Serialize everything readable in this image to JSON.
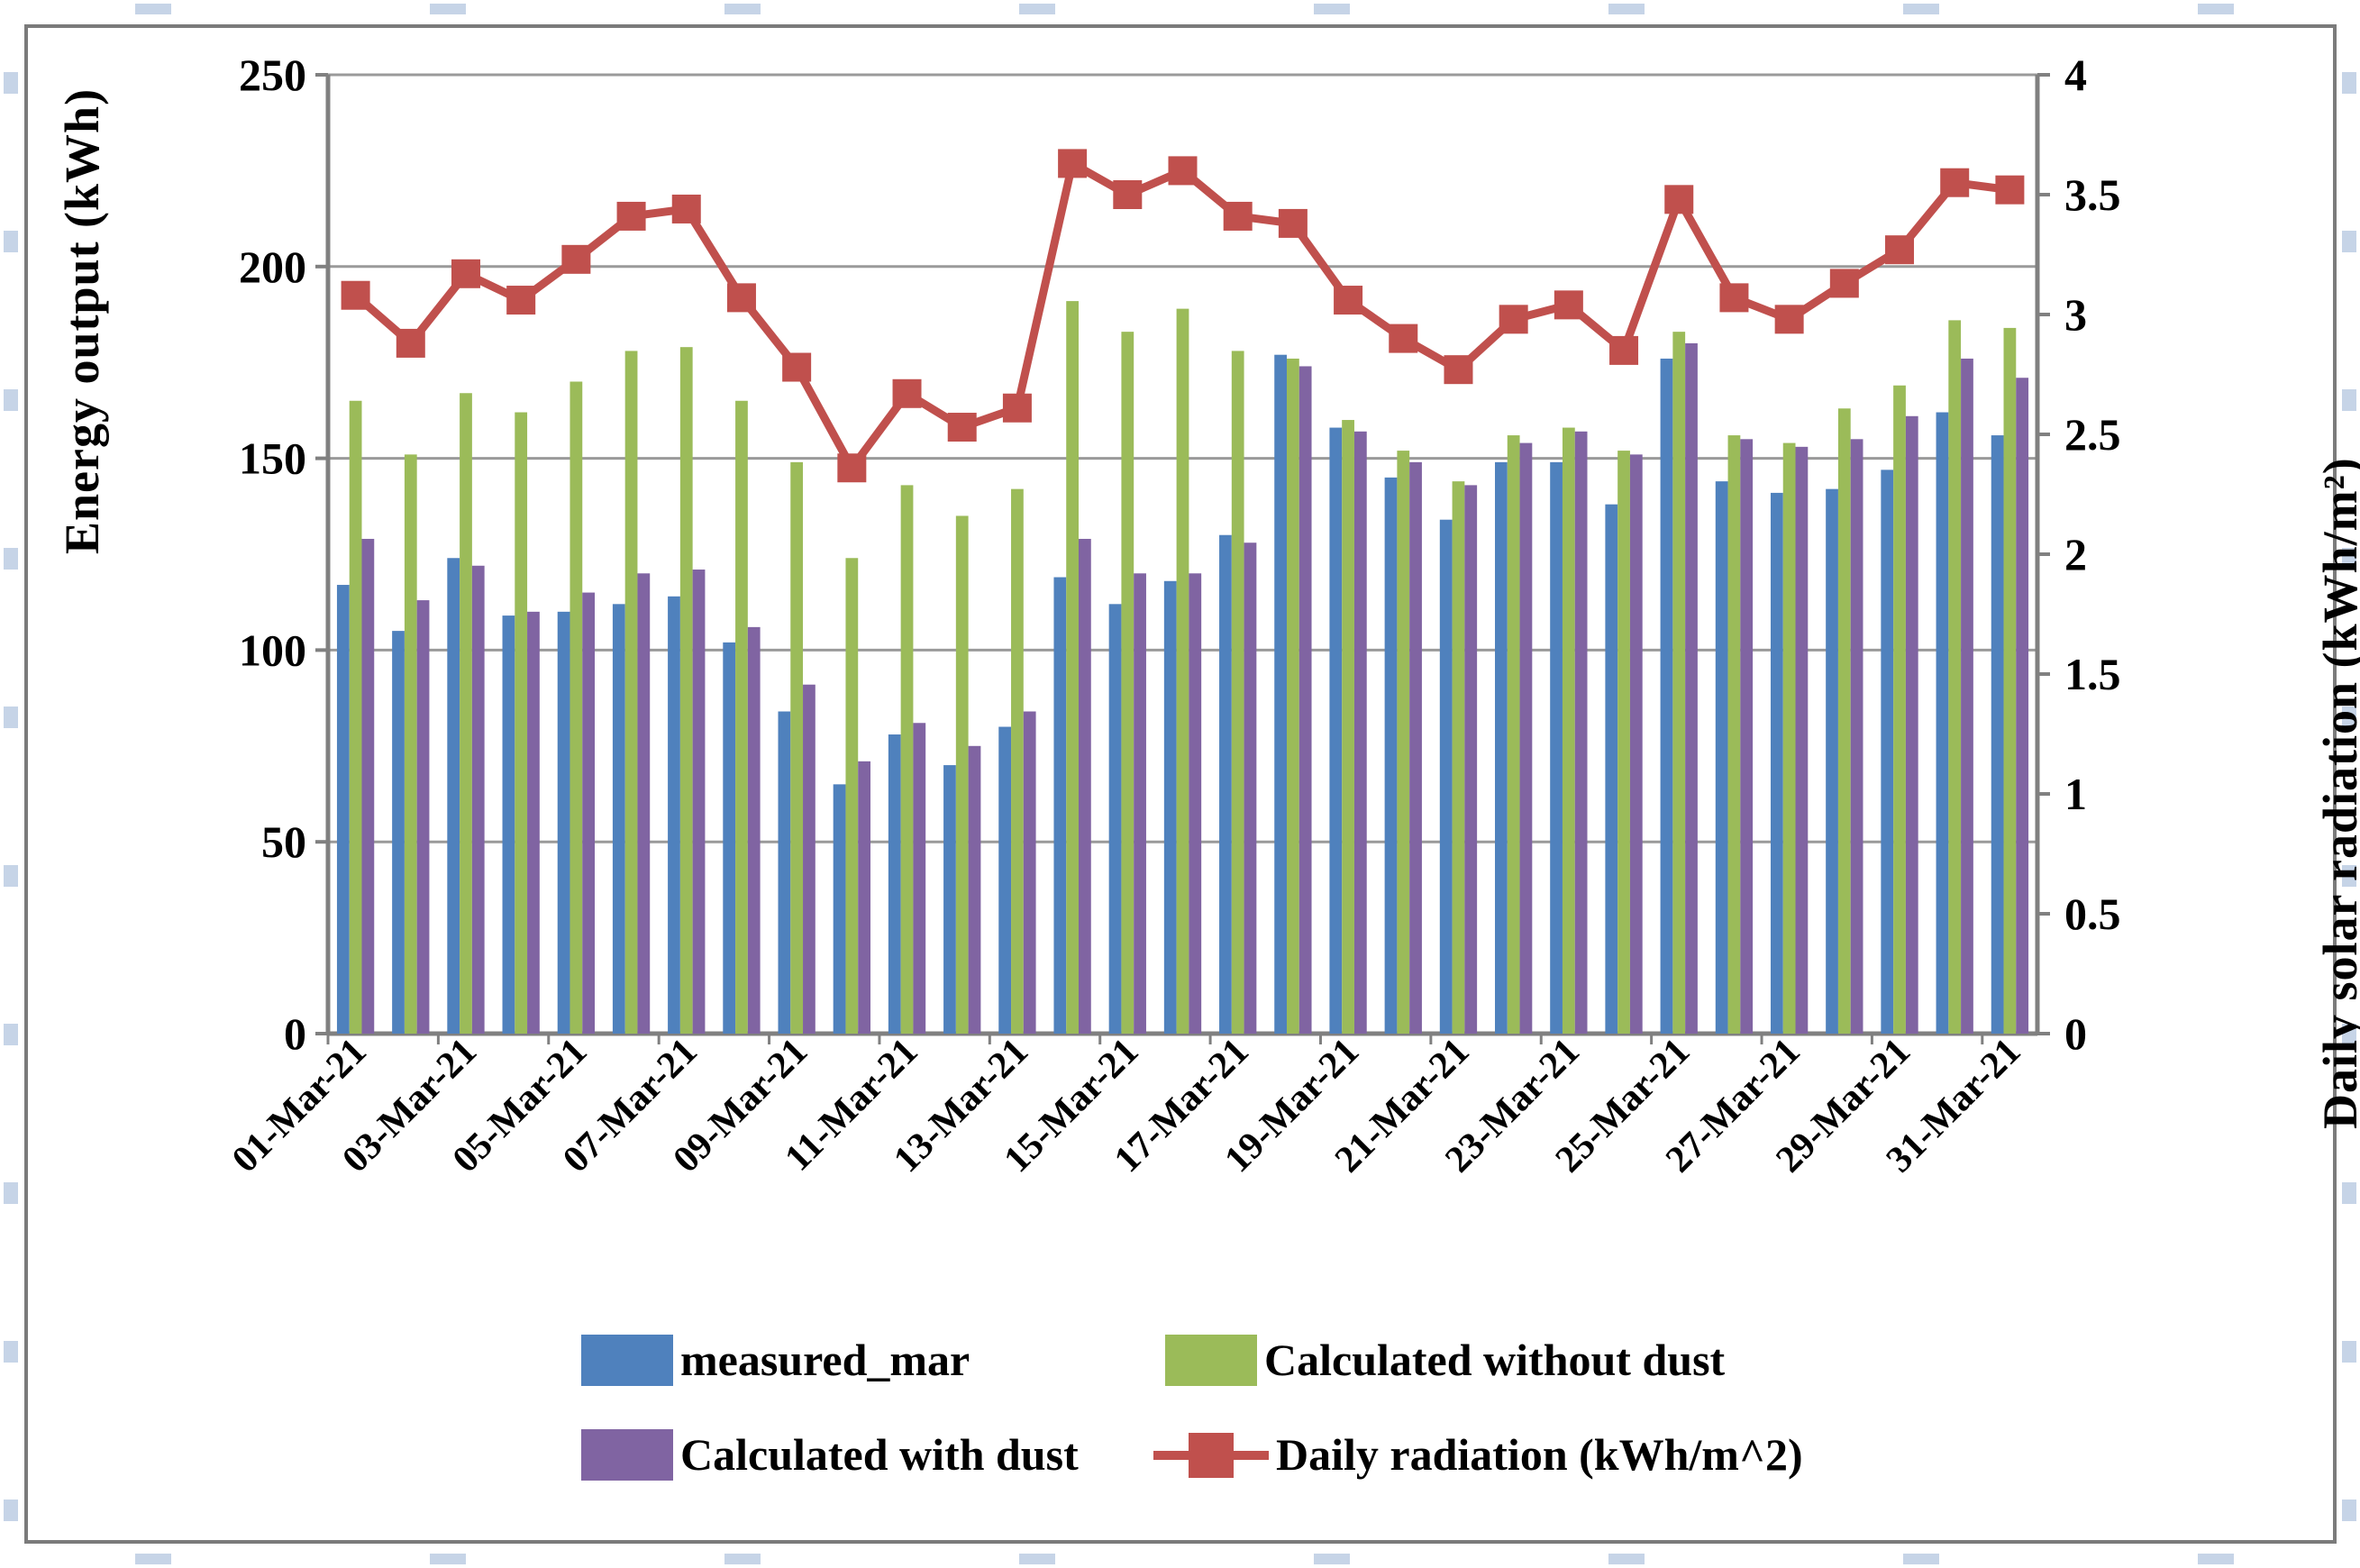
{
  "figure": {
    "background": "#ffffff",
    "frame_color": "#7b7b7b",
    "gridline_color": "#9a9a9a",
    "axis_line_color": "#808080",
    "text_color": "#000000"
  },
  "chart_data": {
    "type": "bar",
    "subtype": "grouped bars with secondary-axis line",
    "title": "",
    "categories": [
      "01-Mar-21",
      "02-Mar-21",
      "03-Mar-21",
      "04-Mar-21",
      "05-Mar-21",
      "06-Mar-21",
      "07-Mar-21",
      "08-Mar-21",
      "09-Mar-21",
      "10-Mar-21",
      "11-Mar-21",
      "12-Mar-21",
      "13-Mar-21",
      "14-Mar-21",
      "15-Mar-21",
      "16-Mar-21",
      "17-Mar-21",
      "18-Mar-21",
      "19-Mar-21",
      "20-Mar-21",
      "21-Mar-21",
      "22-Mar-21",
      "23-Mar-21",
      "24-Mar-21",
      "25-Mar-21",
      "26-Mar-21",
      "27-Mar-21",
      "28-Mar-21",
      "29-Mar-21",
      "30-Mar-21",
      "31-Mar-21"
    ],
    "x_tick_labels": [
      "01-Mar-21",
      "03-Mar-21",
      "05-Mar-21",
      "07-Mar-21",
      "09-Mar-21",
      "11-Mar-21",
      "13-Mar-21",
      "15-Mar-21",
      "17-Mar-21",
      "19-Mar-21",
      "21-Mar-21",
      "23-Mar-21",
      "25-Mar-21",
      "27-Mar-21",
      "29-Mar-21",
      "31-Mar-21"
    ],
    "series": [
      {
        "name": "measured_mar",
        "type": "bar",
        "axis": "left",
        "color": "#4F81BD",
        "values": [
          117,
          105,
          124,
          109,
          110,
          112,
          114,
          102,
          84,
          65,
          78,
          70,
          80,
          119,
          112,
          118,
          130,
          177,
          158,
          145,
          134,
          149,
          149,
          138,
          176,
          144,
          141,
          142,
          147,
          162,
          156
        ]
      },
      {
        "name": "Calculated without dust",
        "type": "bar",
        "axis": "left",
        "color": "#9BBB59",
        "values": [
          165,
          151,
          167,
          162,
          170,
          178,
          179,
          165,
          149,
          124,
          143,
          135,
          142,
          191,
          183,
          189,
          178,
          176,
          160,
          152,
          144,
          156,
          158,
          152,
          183,
          156,
          154,
          163,
          169,
          186,
          184
        ]
      },
      {
        "name": "Calculated with dust",
        "type": "bar",
        "axis": "left",
        "color": "#8064A2",
        "values": [
          129,
          113,
          122,
          110,
          115,
          120,
          121,
          106,
          91,
          71,
          81,
          75,
          84,
          129,
          120,
          120,
          128,
          174,
          157,
          149,
          143,
          154,
          157,
          151,
          180,
          155,
          153,
          155,
          161,
          176,
          171
        ]
      },
      {
        "name": "Daily radiation (kWh/m^2)",
        "type": "line",
        "axis": "right",
        "color": "#C0504D",
        "values": [
          3.08,
          2.88,
          3.17,
          3.06,
          3.23,
          3.41,
          3.44,
          3.07,
          2.78,
          2.36,
          2.67,
          2.53,
          2.61,
          3.63,
          3.5,
          3.6,
          3.41,
          3.38,
          3.06,
          2.9,
          2.77,
          2.98,
          3.04,
          2.85,
          3.48,
          3.07,
          2.98,
          3.13,
          3.27,
          3.55,
          3.52
        ]
      }
    ],
    "left_axis": {
      "label": "Energy output (kWh)",
      "min": 0,
      "max": 250,
      "step": 50,
      "tick_labels": [
        "250",
        "200",
        "150",
        "100",
        "50",
        "0"
      ]
    },
    "right_axis": {
      "label": "Daily solar radiation (kWh/m²)",
      "min": 0,
      "max": 4,
      "step": 0.5,
      "tick_labels": [
        "4",
        "3.5",
        "3",
        "2.5",
        "2",
        "1.5",
        "1",
        "0.5",
        "0"
      ]
    },
    "grid": "horizontal major gridlines on",
    "legend_position": "bottom, two columns"
  },
  "legend": {
    "items": [
      {
        "label": "measured_mar",
        "swatch": "bar",
        "color": "#4F81BD"
      },
      {
        "label": "Calculated without dust",
        "swatch": "bar",
        "color": "#9BBB59"
      },
      {
        "label": "Calculated with dust",
        "swatch": "bar",
        "color": "#8064A2"
      },
      {
        "label": "Daily radiation (kWh/m^2)",
        "swatch": "line-marker",
        "color": "#C0504D"
      }
    ]
  }
}
